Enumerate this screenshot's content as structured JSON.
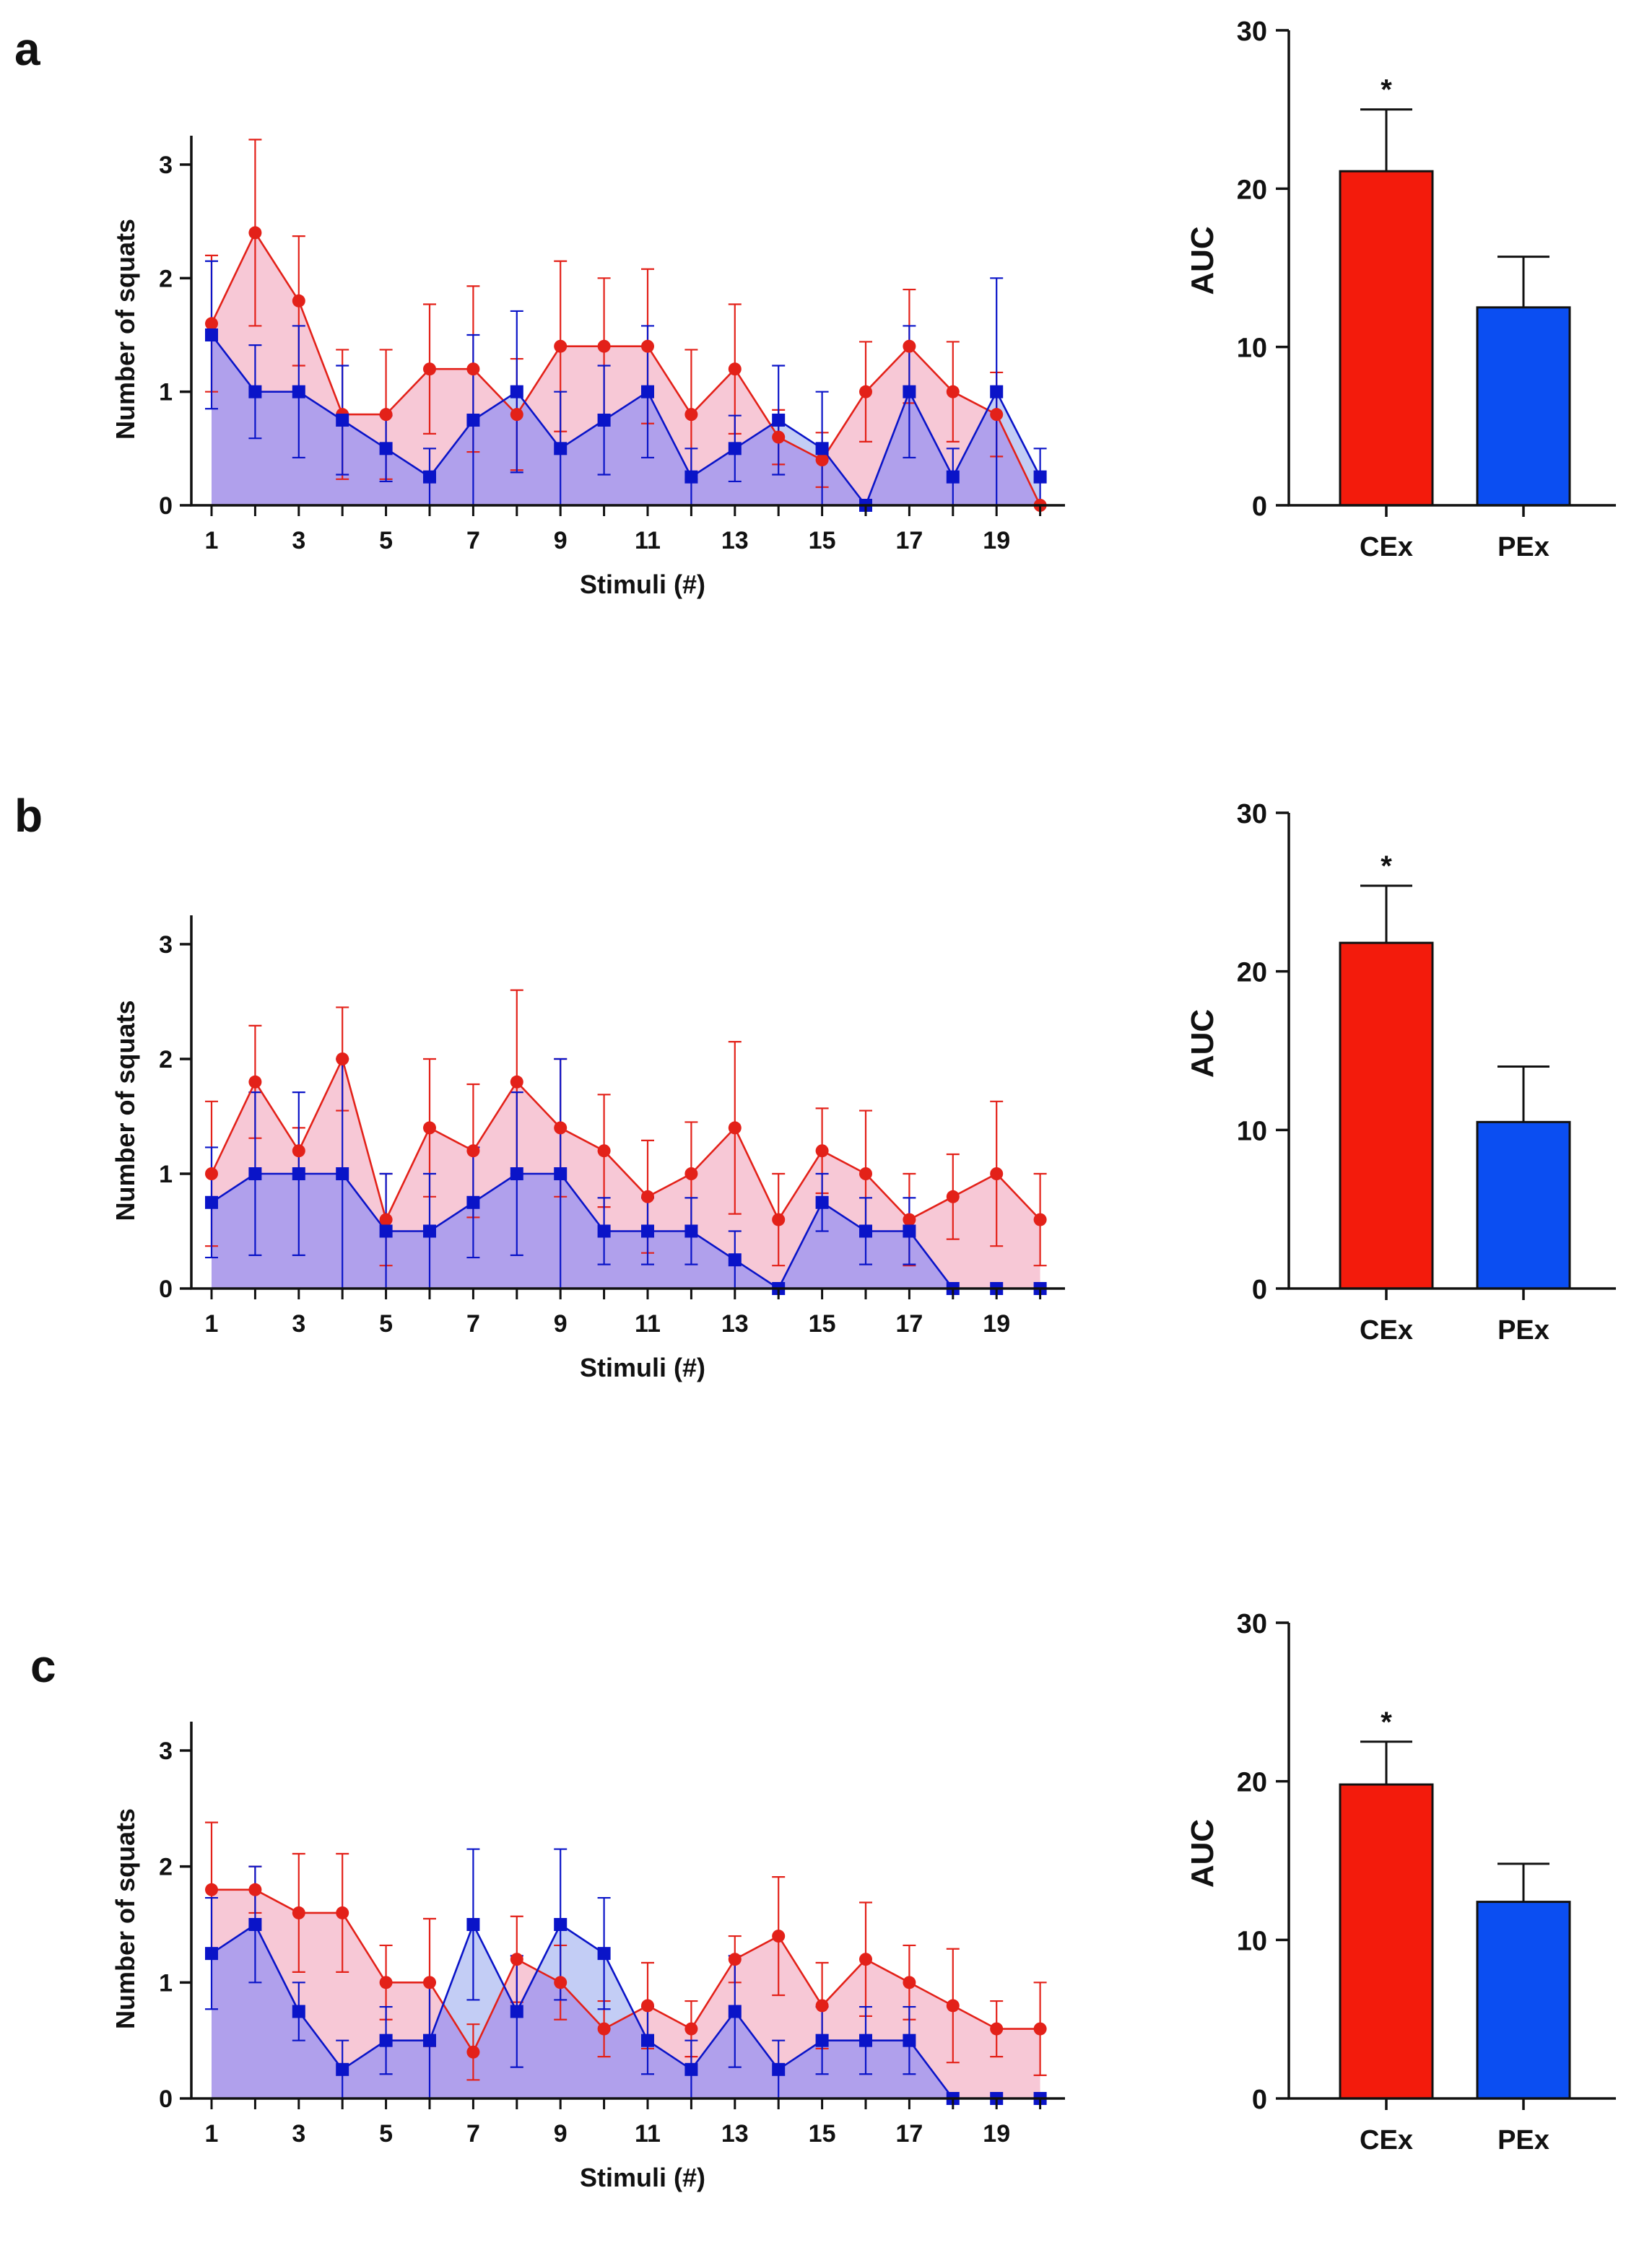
{
  "colors": {
    "cex_line": "#e32119",
    "cex_fill": "#f7c8d6",
    "pex_line": "#0a14c8",
    "pex_fill": "#b0a0ec",
    "pex_fill_light": "#b8c4f3",
    "cex_bar": "#f31b0c",
    "pex_bar": "#0b4ef2",
    "axis": "#111111"
  },
  "chart_data": [
    {
      "panel": "a",
      "type": "line",
      "title": "",
      "xlabel": "Stimuli (#)",
      "ylabel": "Number of squats",
      "x": [
        1,
        2,
        3,
        4,
        5,
        6,
        7,
        8,
        9,
        10,
        11,
        12,
        13,
        14,
        15,
        16,
        17,
        18,
        19,
        20
      ],
      "xticks": [
        1,
        3,
        5,
        7,
        9,
        11,
        13,
        15,
        17,
        19
      ],
      "yticks": [
        0,
        1,
        2,
        3
      ],
      "ylim": [
        0,
        3.3
      ],
      "series": [
        {
          "name": "CEx",
          "marker": "circle",
          "values": [
            1.6,
            2.4,
            1.8,
            0.8,
            0.8,
            1.2,
            1.2,
            0.8,
            1.4,
            1.4,
            1.4,
            0.8,
            1.2,
            0.6,
            0.4,
            1.0,
            1.4,
            1.0,
            0.8,
            0.0
          ],
          "error": [
            0.6,
            0.82,
            0.57,
            0.57,
            0.57,
            0.57,
            0.73,
            0.49,
            0.75,
            0.6,
            0.68,
            0.57,
            0.57,
            0.24,
            0.24,
            0.44,
            0.5,
            0.44,
            0.37,
            0.0
          ]
        },
        {
          "name": "PEx",
          "marker": "square",
          "values": [
            1.5,
            1.0,
            1.0,
            0.75,
            0.5,
            0.25,
            0.75,
            1.0,
            0.5,
            0.75,
            1.0,
            0.25,
            0.5,
            0.75,
            0.5,
            0.0,
            1.0,
            0.25,
            1.0,
            0.25
          ],
          "error": [
            0.65,
            0.41,
            0.58,
            0.48,
            0.29,
            0.25,
            0.75,
            0.71,
            0.5,
            0.48,
            0.58,
            0.25,
            0.29,
            0.48,
            0.5,
            0.0,
            0.58,
            0.25,
            1.0,
            0.25
          ]
        }
      ]
    },
    {
      "panel": "a",
      "type": "bar",
      "title": "",
      "xlabel": "",
      "ylabel": "AUC",
      "categories": [
        "CEx",
        "PEx"
      ],
      "values": [
        21.1,
        12.5
      ],
      "error": [
        3.9,
        3.2
      ],
      "yticks": [
        0,
        10,
        20,
        30
      ],
      "ylim": [
        0,
        30
      ],
      "annotations": [
        {
          "category": "CEx",
          "text": "*"
        }
      ]
    },
    {
      "panel": "b",
      "type": "line",
      "title": "",
      "xlabel": "Stimuli (#)",
      "ylabel": "Number of squats",
      "x": [
        1,
        2,
        3,
        4,
        5,
        6,
        7,
        8,
        9,
        10,
        11,
        12,
        13,
        14,
        15,
        16,
        17,
        18,
        19,
        20
      ],
      "xticks": [
        1,
        3,
        5,
        7,
        9,
        11,
        13,
        15,
        17,
        19
      ],
      "yticks": [
        0,
        1,
        2,
        3
      ],
      "ylim": [
        0,
        3.3
      ],
      "series": [
        {
          "name": "CEx",
          "marker": "circle",
          "values": [
            1.0,
            1.8,
            1.2,
            2.0,
            0.6,
            1.4,
            1.2,
            1.8,
            1.4,
            1.2,
            0.8,
            1.0,
            1.4,
            0.6,
            1.2,
            1.0,
            0.6,
            0.8,
            1.0,
            0.6
          ],
          "error": [
            0.63,
            0.49,
            0.2,
            0.45,
            0.4,
            0.6,
            0.58,
            0.8,
            0.6,
            0.49,
            0.49,
            0.45,
            0.75,
            0.4,
            0.37,
            0.55,
            0.4,
            0.37,
            0.63,
            0.4
          ]
        },
        {
          "name": "PEx",
          "marker": "square",
          "values": [
            0.75,
            1.0,
            1.0,
            1.0,
            0.5,
            0.5,
            0.75,
            1.0,
            1.0,
            0.5,
            0.5,
            0.5,
            0.25,
            0.0,
            0.75,
            0.5,
            0.5,
            0.0,
            0.0,
            0.0
          ],
          "error": [
            0.48,
            0.71,
            0.71,
            1.0,
            0.5,
            0.5,
            0.48,
            0.71,
            1.0,
            0.29,
            0.29,
            0.29,
            0.25,
            0.0,
            0.25,
            0.29,
            0.29,
            0.0,
            0.0,
            0.0
          ]
        }
      ]
    },
    {
      "panel": "b",
      "type": "bar",
      "title": "",
      "xlabel": "",
      "ylabel": "AUC",
      "categories": [
        "CEx",
        "PEx"
      ],
      "values": [
        21.8,
        10.5
      ],
      "error": [
        3.6,
        3.5
      ],
      "yticks": [
        0,
        10,
        20,
        30
      ],
      "ylim": [
        0,
        30
      ],
      "annotations": [
        {
          "category": "CEx",
          "text": "*"
        }
      ]
    },
    {
      "panel": "c",
      "type": "line",
      "title": "",
      "xlabel": "Stimuli (#)",
      "ylabel": "Number of squats",
      "x": [
        1,
        2,
        3,
        4,
        5,
        6,
        7,
        8,
        9,
        10,
        11,
        12,
        13,
        14,
        15,
        16,
        17,
        18,
        19,
        20
      ],
      "xticks": [
        1,
        3,
        5,
        7,
        9,
        11,
        13,
        15,
        17,
        19
      ],
      "yticks": [
        0,
        1,
        2,
        3
      ],
      "ylim": [
        0,
        3.3
      ],
      "series": [
        {
          "name": "CEx",
          "marker": "circle",
          "values": [
            1.8,
            1.8,
            1.6,
            1.6,
            1.0,
            1.0,
            0.4,
            1.2,
            1.0,
            0.6,
            0.8,
            0.6,
            1.2,
            1.4,
            0.8,
            1.2,
            1.0,
            0.8,
            0.6,
            0.6
          ],
          "error": [
            0.58,
            0.2,
            0.51,
            0.51,
            0.32,
            0.55,
            0.24,
            0.37,
            0.32,
            0.24,
            0.37,
            0.24,
            0.2,
            0.51,
            0.37,
            0.49,
            0.32,
            0.49,
            0.24,
            0.4
          ]
        },
        {
          "name": "PEx",
          "marker": "square",
          "values": [
            1.25,
            1.5,
            0.75,
            0.25,
            0.5,
            0.5,
            1.5,
            0.75,
            1.5,
            1.25,
            0.5,
            0.25,
            0.75,
            0.25,
            0.5,
            0.5,
            0.5,
            0.0,
            0.0,
            0.0
          ],
          "error": [
            0.48,
            0.5,
            0.25,
            0.25,
            0.29,
            0.5,
            0.65,
            0.48,
            0.65,
            0.48,
            0.29,
            0.25,
            0.48,
            0.25,
            0.29,
            0.29,
            0.29,
            0.0,
            0.0,
            0.0
          ]
        }
      ]
    },
    {
      "panel": "c",
      "type": "bar",
      "title": "",
      "xlabel": "",
      "ylabel": "AUC",
      "categories": [
        "CEx",
        "PEx"
      ],
      "values": [
        19.8,
        12.4
      ],
      "error": [
        2.7,
        2.4
      ],
      "yticks": [
        0,
        10,
        20,
        30
      ],
      "ylim": [
        0,
        30
      ],
      "annotations": [
        {
          "category": "CEx",
          "text": "*"
        }
      ]
    }
  ]
}
